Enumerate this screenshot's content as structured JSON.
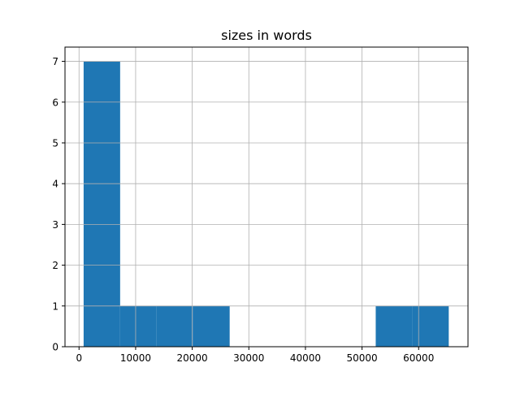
{
  "chart_data": {
    "type": "bar",
    "subtype": "histogram",
    "title": "sizes in words",
    "xlabel": "",
    "ylabel": "",
    "bin_range": [
      810,
      65320
    ],
    "bin_count": 10,
    "counts": [
      7,
      1,
      1,
      1,
      0,
      0,
      0,
      0,
      1,
      1
    ],
    "xlim": [
      -2480,
      68720
    ],
    "ylim": [
      0,
      7.35
    ],
    "xticks": [
      0,
      10000,
      20000,
      30000,
      40000,
      50000,
      60000
    ],
    "xtick_labels": [
      "0",
      "10000",
      "20000",
      "30000",
      "40000",
      "50000",
      "60000"
    ],
    "yticks": [
      0,
      1,
      2,
      3,
      4,
      5,
      6,
      7
    ],
    "ytick_labels": [
      "0",
      "1",
      "2",
      "3",
      "4",
      "5",
      "6",
      "7"
    ],
    "grid": true,
    "bar_color": "#1f77b4",
    "grid_color": "#b0b0b0"
  }
}
